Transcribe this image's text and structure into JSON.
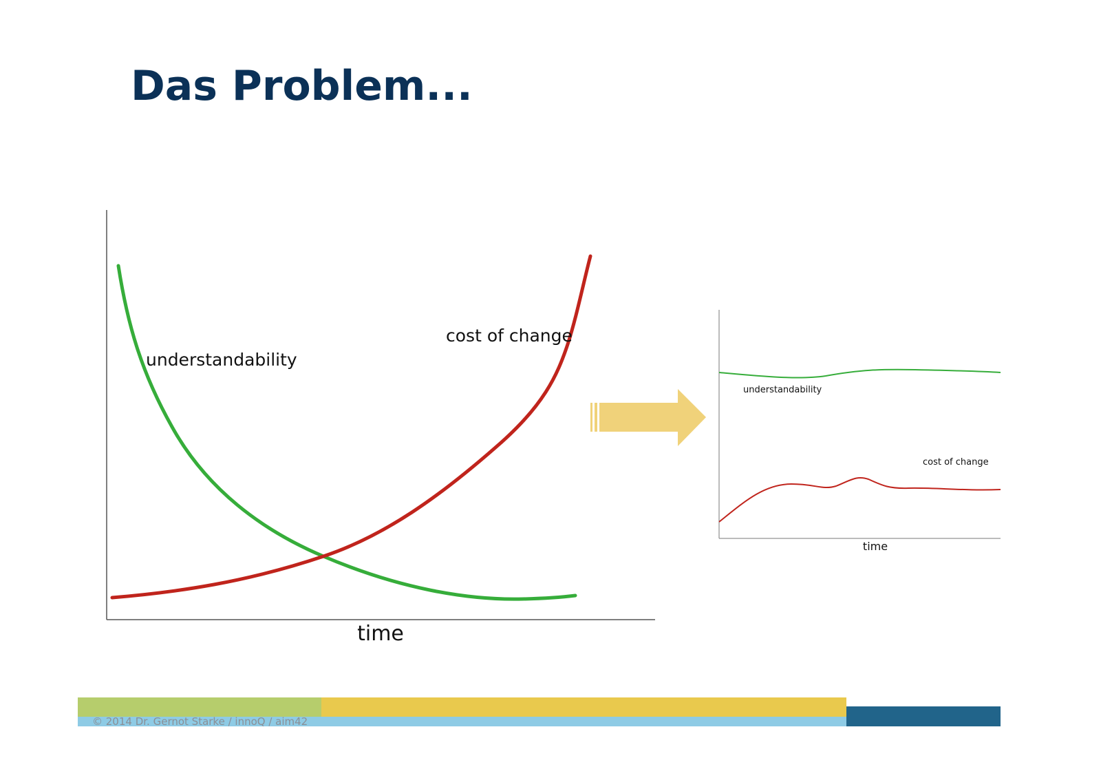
{
  "header": {
    "title": "Das Problem..."
  },
  "diagrams": [
    {
      "curve_labels": [
        "understandability",
        "cost of change"
      ],
      "x_axis_label": "time"
    },
    {
      "curve_labels": [
        "understandability",
        "cost of change"
      ],
      "x_axis_label": "time"
    }
  ],
  "footer": {
    "text": "© 2014 Dr. Gernot Starke / innoQ / aim42"
  }
}
